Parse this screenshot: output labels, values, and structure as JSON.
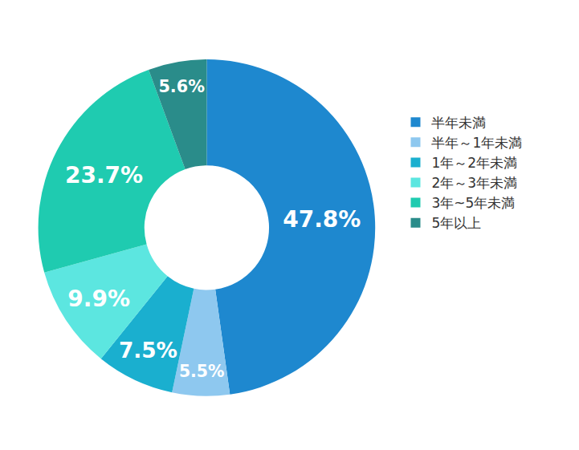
{
  "chart_data": {
    "type": "pie",
    "categories": [
      "半年未満",
      "半年～1年未満",
      "1年～2年未満",
      "2年～3年未満",
      "3年~5年未満",
      "5年以上"
    ],
    "values": [
      47.8,
      5.5,
      7.5,
      9.9,
      23.7,
      5.6
    ],
    "value_labels": [
      "47.8%",
      "5.5%",
      "7.5%",
      "9.9%",
      "23.7%",
      "5.6%"
    ],
    "colors": [
      "#1e88cf",
      "#8ec8ef",
      "#1aafcf",
      "#5ce6e0",
      "#1fcbb0",
      "#2a8c8a"
    ],
    "data_labels": true,
    "legend": "right"
  }
}
